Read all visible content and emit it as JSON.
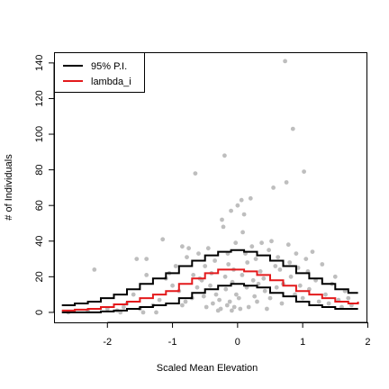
{
  "chart_data": {
    "type": "scatter",
    "title": "",
    "xlabel": "Scaled Mean Elevation",
    "ylabel": "# of Individuals",
    "xlim": [
      -2.82,
      1.98
    ],
    "ylim": [
      -5.6,
      146
    ],
    "xticks": [
      "-2",
      "-1",
      "0",
      "1",
      "2"
    ],
    "yticks": [
      "0",
      "20",
      "40",
      "60",
      "80",
      "100",
      "120",
      "140"
    ],
    "legend": {
      "position": "top-left",
      "entries": [
        {
          "label": "95% P.I.",
          "color": "#000000"
        },
        {
          "label": "lambda_i",
          "color": "#e31a1c"
        }
      ]
    },
    "colors": {
      "points": "#bebebe",
      "pi": "#000000",
      "lambda": "#e31a1c"
    },
    "curves": {
      "x": [
        -2.7,
        -2.5,
        -2.3,
        -2.1,
        -1.9,
        -1.7,
        -1.5,
        -1.3,
        -1.1,
        -0.9,
        -0.7,
        -0.5,
        -0.3,
        -0.1,
        0.1,
        0.3,
        0.5,
        0.7,
        0.9,
        1.1,
        1.3,
        1.5,
        1.7,
        1.85
      ],
      "upper": [
        4,
        5,
        6,
        8,
        10,
        13,
        16,
        19,
        22,
        26,
        29,
        32,
        34,
        35,
        34,
        32,
        29,
        26,
        22,
        19,
        16,
        13,
        11,
        11
      ],
      "lambda": [
        1,
        1.5,
        2,
        3,
        4.5,
        6,
        8,
        10,
        12,
        16,
        19,
        22,
        24,
        24,
        23,
        21,
        18,
        15,
        12,
        10,
        8,
        6,
        5,
        6
      ],
      "lower": [
        0,
        0,
        0,
        0.5,
        1,
        2,
        3,
        4,
        5,
        8,
        11,
        13,
        15,
        16,
        15,
        14,
        11,
        9,
        6,
        4,
        3,
        2,
        2,
        2
      ]
    },
    "points": [
      [
        -2.6,
        0
      ],
      [
        -2.3,
        1
      ],
      [
        -2.2,
        24
      ],
      [
        -2.0,
        2
      ],
      [
        -1.85,
        1
      ],
      [
        -1.8,
        0
      ],
      [
        -1.75,
        3
      ],
      [
        -1.7,
        5
      ],
      [
        -1.6,
        10
      ],
      [
        -1.55,
        30
      ],
      [
        -1.5,
        2
      ],
      [
        -1.45,
        0
      ],
      [
        -1.4,
        21
      ],
      [
        -1.4,
        30
      ],
      [
        -1.3,
        4
      ],
      [
        -1.25,
        0
      ],
      [
        -1.2,
        7
      ],
      [
        -1.15,
        41
      ],
      [
        -1.1,
        19
      ],
      [
        -1.05,
        22
      ],
      [
        -1.0,
        15
      ],
      [
        -0.95,
        26
      ],
      [
        -0.9,
        12
      ],
      [
        -0.85,
        4
      ],
      [
        -0.85,
        37
      ],
      [
        -0.8,
        6
      ],
      [
        -0.78,
        31
      ],
      [
        -0.75,
        36
      ],
      [
        -0.7,
        8
      ],
      [
        -0.68,
        21
      ],
      [
        -0.65,
        78
      ],
      [
        -0.62,
        14
      ],
      [
        -0.6,
        33
      ],
      [
        -0.58,
        19
      ],
      [
        -0.55,
        18
      ],
      [
        -0.52,
        9
      ],
      [
        -0.5,
        26
      ],
      [
        -0.48,
        3
      ],
      [
        -0.45,
        36
      ],
      [
        -0.42,
        15
      ],
      [
        -0.4,
        22
      ],
      [
        -0.38,
        5
      ],
      [
        -0.35,
        29
      ],
      [
        -0.33,
        10
      ],
      [
        -0.3,
        1
      ],
      [
        -0.28,
        7
      ],
      [
        -0.26,
        2
      ],
      [
        -0.24,
        52
      ],
      [
        -0.22,
        48
      ],
      [
        -0.2,
        88
      ],
      [
        -0.19,
        20
      ],
      [
        -0.18,
        13
      ],
      [
        -0.16,
        4
      ],
      [
        -0.15,
        33
      ],
      [
        -0.14,
        27
      ],
      [
        -0.12,
        6
      ],
      [
        -0.1,
        57
      ],
      [
        -0.09,
        1
      ],
      [
        -0.08,
        17
      ],
      [
        -0.06,
        24
      ],
      [
        -0.05,
        3
      ],
      [
        -0.03,
        39
      ],
      [
        -0.02,
        10
      ],
      [
        0.0,
        60
      ],
      [
        0.02,
        8
      ],
      [
        0.04,
        2
      ],
      [
        0.06,
        63
      ],
      [
        0.07,
        21
      ],
      [
        0.08,
        45
      ],
      [
        0.1,
        55
      ],
      [
        0.12,
        33
      ],
      [
        0.14,
        14
      ],
      [
        0.15,
        28
      ],
      [
        0.17,
        3
      ],
      [
        0.2,
        64
      ],
      [
        0.22,
        37
      ],
      [
        0.24,
        18
      ],
      [
        0.26,
        9
      ],
      [
        0.28,
        30
      ],
      [
        0.3,
        6
      ],
      [
        0.32,
        16
      ],
      [
        0.35,
        23
      ],
      [
        0.37,
        39
      ],
      [
        0.4,
        19
      ],
      [
        0.42,
        12
      ],
      [
        0.45,
        2
      ],
      [
        0.48,
        35
      ],
      [
        0.5,
        8
      ],
      [
        0.52,
        40
      ],
      [
        0.55,
        70
      ],
      [
        0.58,
        26
      ],
      [
        0.6,
        14
      ],
      [
        0.62,
        31
      ],
      [
        0.65,
        24
      ],
      [
        0.68,
        5
      ],
      [
        0.7,
        16
      ],
      [
        0.73,
        141
      ],
      [
        0.75,
        73
      ],
      [
        0.78,
        38
      ],
      [
        0.8,
        28
      ],
      [
        0.82,
        20
      ],
      [
        0.85,
        103
      ],
      [
        0.88,
        10
      ],
      [
        0.9,
        33
      ],
      [
        0.93,
        25
      ],
      [
        0.96,
        15
      ],
      [
        1.0,
        8
      ],
      [
        1.02,
        79
      ],
      [
        1.05,
        30
      ],
      [
        1.08,
        23
      ],
      [
        1.1,
        13
      ],
      [
        1.15,
        34
      ],
      [
        1.2,
        18
      ],
      [
        1.25,
        6
      ],
      [
        1.3,
        27
      ],
      [
        1.35,
        10
      ],
      [
        1.4,
        5
      ],
      [
        1.45,
        16
      ],
      [
        1.5,
        20
      ],
      [
        1.55,
        7
      ],
      [
        1.6,
        3
      ],
      [
        1.65,
        12
      ],
      [
        1.7,
        8
      ],
      [
        1.75,
        4
      ]
    ]
  }
}
